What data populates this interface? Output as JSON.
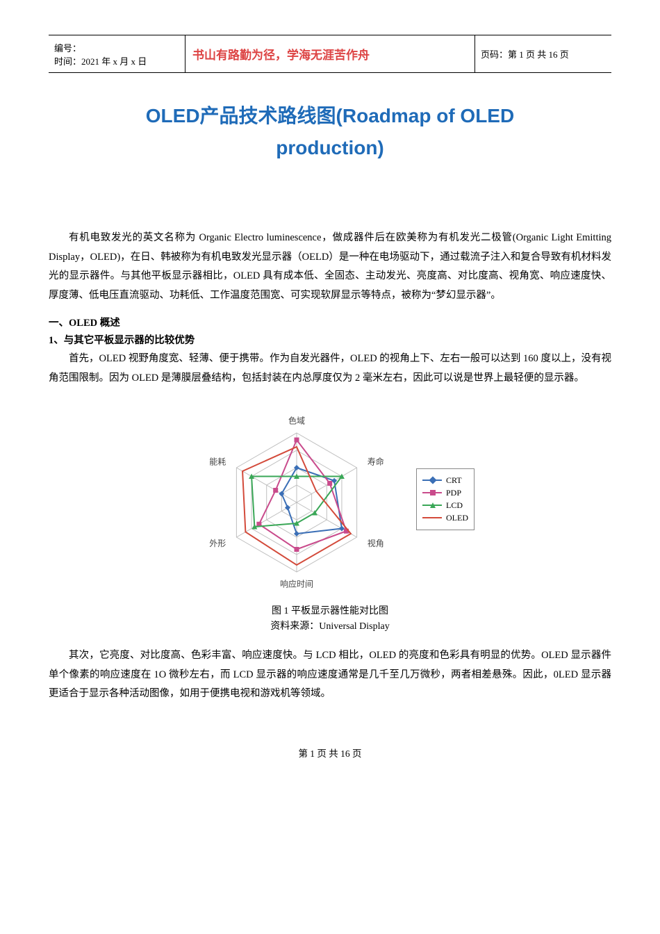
{
  "header": {
    "left_line1": "编号：",
    "left_line2": "时间：2021 年 x 月 x 日",
    "middle": "书山有路勤为径，学海无涯苦作舟",
    "right": "页码：第 1 页 共 16 页"
  },
  "title": {
    "line1": "OLED产品技术路线图(Roadmap of OLED",
    "line2": "production)"
  },
  "intro": "有机电致发光的英文名称为 Organic Electro luminescence，做成器件后在欧美称为有机发光二极管(Organic Light Emitting Display，OLED)，在日、韩被称为有机电致发光显示器（OELD）是一种在电场驱动下，通过载流子注入和复合导致有机材料发光的显示器件。与其他平板显示器相比，OLED 具有成本低、全固态、主动发光、亮度高、对比度高、视角宽、响应速度快、厚度薄、低电压直流驱动、功耗低、工作温度范围宽、可实现软屏显示等特点，被称为“梦幻显示器”。",
  "section1_h": "一、OLED 概述",
  "section1_sub": "1、与其它平板显示器的比较优势",
  "para1": "首先，OLED 视野角度宽、轻薄、便于携带。作为自发光器件，OLED 的视角上下、左右一般可以达到 160 度以上，没有视角范围限制。因为 OLED 是薄膜层叠结构，包括封装在内总厚度仅为 2 毫米左右，因此可以说是世界上最轻便的显示器。",
  "chart": {
    "axes": [
      "色域",
      "寿命",
      "视角",
      "响应时间",
      "外形",
      "能耗"
    ],
    "axis_fontsize": 12,
    "grid_color": "#bfbfbf",
    "grid_levels": 4,
    "max": 4,
    "background_color": "#ffffff",
    "series": [
      {
        "name": "CRT",
        "color": "#3b6fb6",
        "marker": "diamond",
        "values": [
          2.0,
          2.5,
          3.0,
          1.8,
          0.6,
          1.0
        ]
      },
      {
        "name": "PDP",
        "color": "#c94b8c",
        "marker": "square",
        "values": [
          3.6,
          2.2,
          3.3,
          2.7,
          2.5,
          1.4
        ]
      },
      {
        "name": "LCD",
        "color": "#3aa757",
        "marker": "triangle",
        "values": [
          1.5,
          3.0,
          1.2,
          1.2,
          2.8,
          3.0
        ]
      },
      {
        "name": "OLED",
        "color": "#d34a3a",
        "marker": "line",
        "values": [
          3.2,
          1.3,
          3.6,
          3.6,
          3.4,
          3.6
        ]
      }
    ],
    "legend_labels": [
      "CRT",
      "PDP",
      "LCD",
      "OLED"
    ]
  },
  "fig_caption": "图 1 平板显示器性能对比图",
  "fig_source": "资料来源：Universal Display",
  "para2": "其次，它亮度、对比度高、色彩丰富、响应速度快。与 LCD 相比，OLED 的亮度和色彩具有明显的优势。OLED 显示器件单个像素的响应速度在 1O 微秒左右，而 LCD 显示器的响应速度通常是几千至几万微秒，两者相差悬殊。因此，0LED 显示器更适合于显示各种活动图像，如用于便携电视和游戏机等领域。",
  "footer": "第 1 页 共 16 页"
}
